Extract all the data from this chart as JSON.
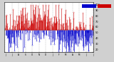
{
  "bg_color": "#d0d0d0",
  "plot_bg_color": "#ffffff",
  "bar_color_blue": "#0000cc",
  "bar_color_red": "#cc0000",
  "ylim": [
    15,
    105
  ],
  "yticks": [
    20,
    30,
    40,
    50,
    60,
    70,
    80,
    90,
    100
  ],
  "ytick_fontsize": 2.5,
  "xtick_fontsize": 2.0,
  "n_points": 365,
  "seed": 42,
  "baseline": 55,
  "vline_color": "#999999",
  "hline_color": "#444444",
  "bar_linewidth": 0.4,
  "dot_size": 0.15
}
